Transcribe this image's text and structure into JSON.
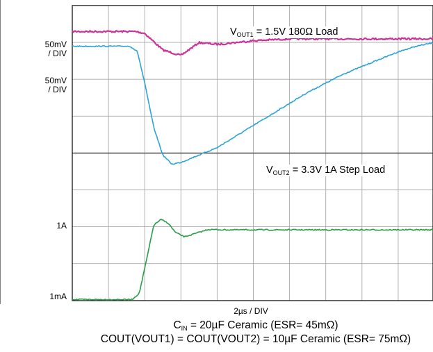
{
  "chart_data": {
    "type": "line",
    "title": "",
    "xlabel": "2µs / DIV",
    "ylabel": "",
    "grid": true,
    "x_divisions": 10,
    "y_divisions": 8,
    "xlim": [
      0,
      20
    ],
    "x_unit": "µs",
    "channel_scales": [
      {
        "label_line1": "50mV",
        "label_line2": "/ DIV"
      },
      {
        "label_line1": "50mV",
        "label_line2": "/ DIV"
      }
    ],
    "level_labels": [
      "1A",
      "1mA"
    ],
    "annotations": [
      {
        "main": "V",
        "sub": "OUT1",
        "rest": " = 1.5V 180Ω Load"
      },
      {
        "main": "V",
        "sub": "OUT2",
        "rest": " = 3.3V 1A Step Load"
      }
    ],
    "footnotes": [
      {
        "main": "C",
        "sub": "IN",
        "rest": " = 20µF Ceramic (ESR= 45mΩ)"
      },
      {
        "text": "COUT(VOUT1) = COUT(VOUT2) = 10µF Ceramic (ESR= 75mΩ)"
      }
    ],
    "series": [
      {
        "color": "#cc3399",
        "x": [
          0,
          3.5,
          4.0,
          5.0,
          6.0,
          7.0,
          8.0,
          10.0,
          12.0,
          14.0,
          16.0,
          18.0,
          20.0
        ],
        "y": [
          7.3,
          7.3,
          7.25,
          6.8,
          6.65,
          7.0,
          6.95,
          7.05,
          7.1,
          7.1,
          7.1,
          7.1,
          7.1
        ]
      },
      {
        "color": "#2ba3d9",
        "x": [
          0,
          3.2,
          3.6,
          4.0,
          4.5,
          5.0,
          5.5,
          6.0,
          6.5,
          7.0,
          8.0,
          9.0,
          10.0,
          11.0,
          12.0,
          13.0,
          14.0,
          15.0,
          16.0,
          17.0,
          18.0,
          19.0,
          20.0
        ],
        "y": [
          6.9,
          6.9,
          6.75,
          5.9,
          4.7,
          3.95,
          3.7,
          3.75,
          3.85,
          3.95,
          4.15,
          4.45,
          4.75,
          5.05,
          5.35,
          5.65,
          5.9,
          6.15,
          6.35,
          6.55,
          6.75,
          6.9,
          7.0
        ]
      },
      {
        "color": "#2a9d47",
        "x": [
          0,
          3.3,
          3.7,
          4.1,
          4.5,
          4.9,
          5.3,
          5.7,
          6.2,
          6.8,
          7.5,
          8.5,
          10.0,
          12.0,
          14.0,
          16.0,
          18.0,
          20.0
        ],
        "y": [
          0.03,
          0.03,
          0.2,
          1.1,
          2.05,
          2.2,
          2.1,
          1.85,
          1.73,
          1.82,
          1.93,
          1.92,
          1.92,
          1.92,
          1.92,
          1.92,
          1.92,
          1.92
        ]
      }
    ]
  }
}
